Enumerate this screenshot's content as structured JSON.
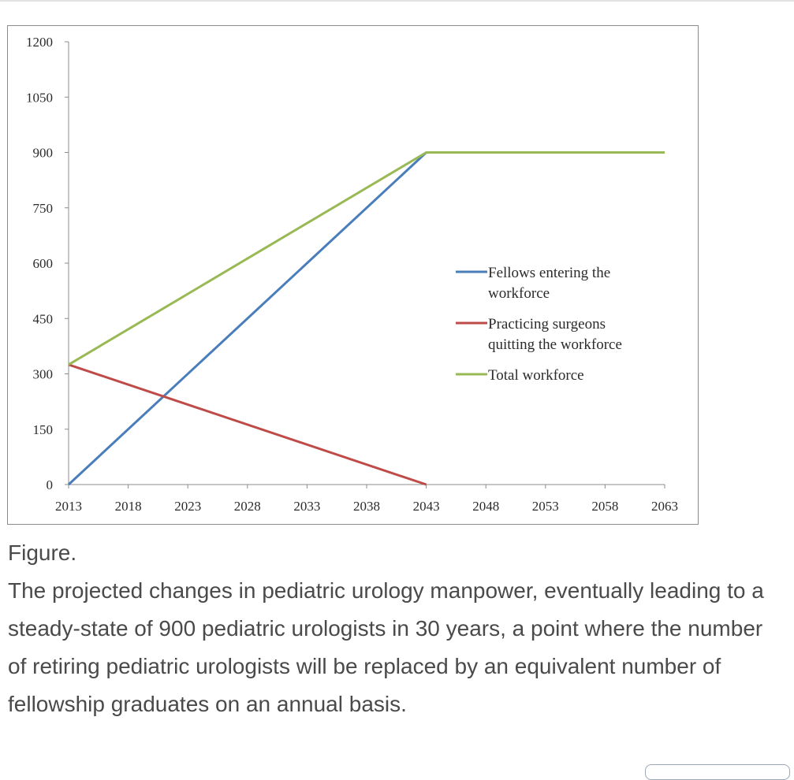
{
  "chart_data": {
    "type": "line",
    "x": [
      2013,
      2043,
      2063
    ],
    "x_ticks": [
      "2013",
      "2018",
      "2023",
      "2028",
      "2033",
      "2038",
      "2043",
      "2048",
      "2053",
      "2058",
      "2063"
    ],
    "y_ticks": [
      "0",
      "150",
      "300",
      "450",
      "600",
      "750",
      "900",
      "1050",
      "1200"
    ],
    "xlim": [
      2013,
      2063
    ],
    "ylim": [
      0,
      1200
    ],
    "title": "",
    "xlabel": "",
    "ylabel": "",
    "grid": false,
    "legend_position": "right-center",
    "series": [
      {
        "name": "Fellows entering the workforce",
        "color": "#4a7ebb",
        "points": [
          [
            2013,
            0
          ],
          [
            2043,
            900
          ]
        ]
      },
      {
        "name": "Practicing surgeons quitting the workforce",
        "color": "#be4b48",
        "points": [
          [
            2013,
            325
          ],
          [
            2043,
            0
          ]
        ]
      },
      {
        "name": "Total workforce",
        "color": "#98b954",
        "points": [
          [
            2013,
            325
          ],
          [
            2043,
            900
          ],
          [
            2063,
            900
          ]
        ]
      }
    ],
    "legend_lines": [
      [
        "Fellows entering the",
        "workforce"
      ],
      [
        "Practicing surgeons",
        "quitting the workforce"
      ],
      [
        "Total workforce"
      ]
    ]
  },
  "caption": {
    "title": "Figure.",
    "text": "The projected changes in pediatric urology manpower, eventually leading to a steady-state of 900 pediatric urologists in 30 years, a point where the number of retiring pediatric urologists will be replaced by an equivalent number of fellowship graduates on an annual basis."
  }
}
